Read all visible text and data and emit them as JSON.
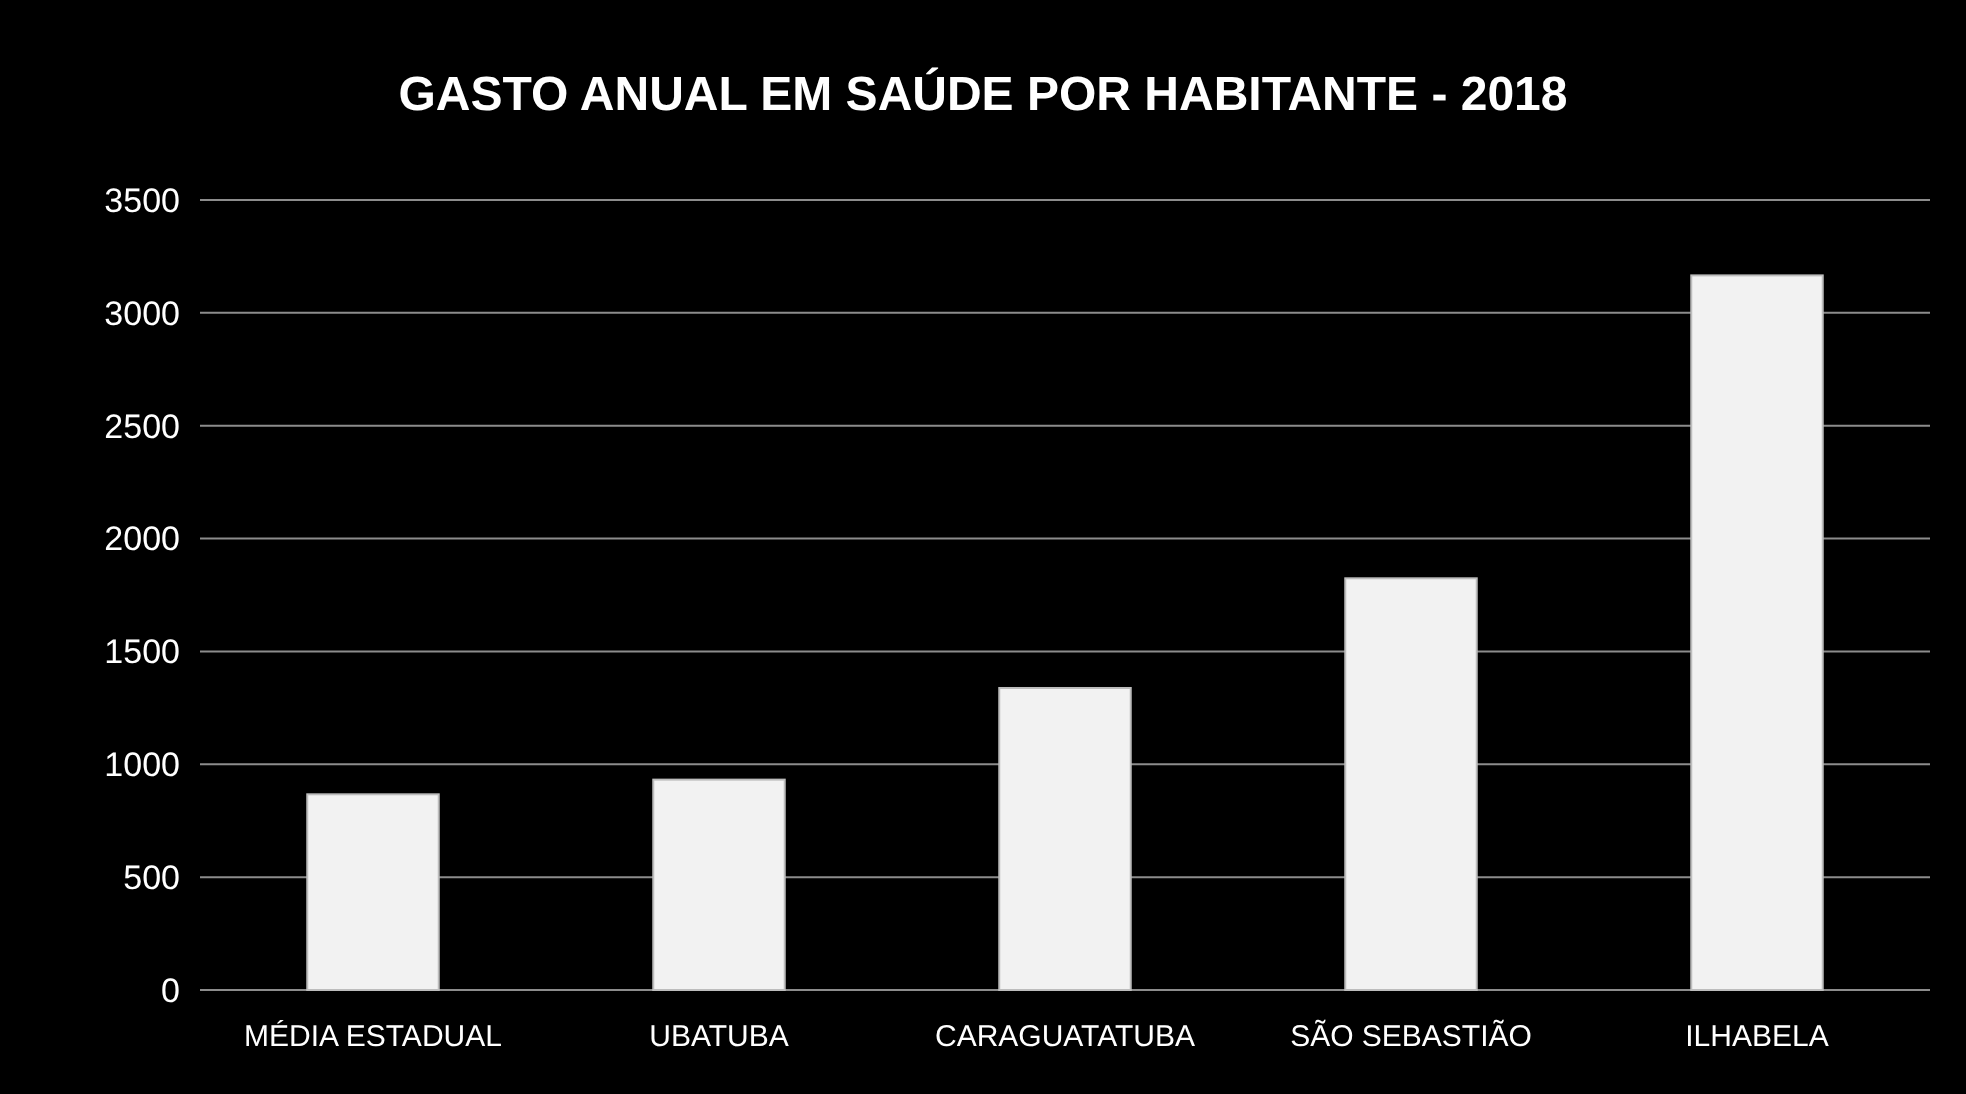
{
  "chart_data": {
    "type": "bar",
    "title": "GASTO ANUAL EM SAÚDE POR HABITANTE - 2018",
    "categories": [
      "MÉDIA ESTADUAL",
      "UBATUBA",
      "CARAGUATATUBA",
      "SÃO SEBASTIÃO",
      "ILHABELA"
    ],
    "values": [
      867,
      932,
      1338,
      1824,
      3166
    ],
    "color": "#f2f2f2",
    "ylim": [
      0,
      3500
    ],
    "yticks": [
      0,
      500,
      1000,
      1500,
      2000,
      2500,
      3000,
      3500
    ],
    "grid": "y"
  }
}
